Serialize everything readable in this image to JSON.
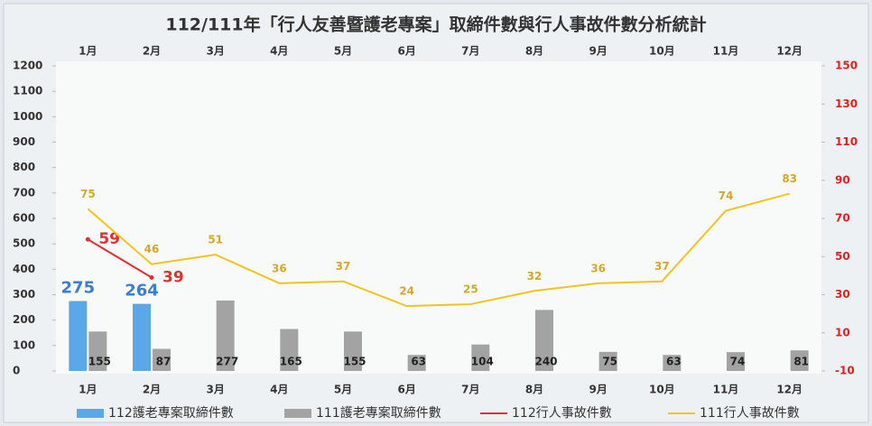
{
  "chart_data": {
    "type": "bar",
    "title": "112/111年「行人友善暨護老專案」取締件數與行人事故件數分析統計",
    "categories": [
      "1月",
      "2月",
      "3月",
      "4月",
      "5月",
      "6月",
      "7月",
      "8月",
      "9月",
      "10月",
      "11月",
      "12月"
    ],
    "series": [
      {
        "name": "112護老專案取締件數",
        "type": "bar",
        "color": "#5aa8e8",
        "values": [
          275,
          264,
          null,
          null,
          null,
          null,
          null,
          null,
          null,
          null,
          null,
          null
        ]
      },
      {
        "name": "111護老專案取締件數",
        "type": "bar",
        "color": "#a3a3a3",
        "values": [
          155,
          87,
          277,
          165,
          155,
          63,
          104,
          240,
          75,
          63,
          74,
          81
        ]
      },
      {
        "name": "112行人事故件數",
        "type": "line",
        "axis": "y2",
        "color": "#e03030",
        "values": [
          59,
          39,
          null,
          null,
          null,
          null,
          null,
          null,
          null,
          null,
          null,
          null
        ]
      },
      {
        "name": "111行人事故件數",
        "type": "line",
        "axis": "y2",
        "color": "#f2c41e",
        "values": [
          75,
          46,
          51,
          36,
          37,
          24,
          25,
          32,
          36,
          37,
          74,
          83
        ]
      }
    ],
    "ylim": [
      0,
      1200
    ],
    "yticks": [
      0,
      100,
      200,
      300,
      400,
      500,
      600,
      700,
      800,
      900,
      1000,
      1100,
      1200
    ],
    "y2lim": [
      -10,
      150
    ],
    "y2ticks": [
      -10,
      10,
      30,
      50,
      70,
      90,
      110,
      130,
      150
    ],
    "grid": false,
    "legend": "bottom"
  }
}
